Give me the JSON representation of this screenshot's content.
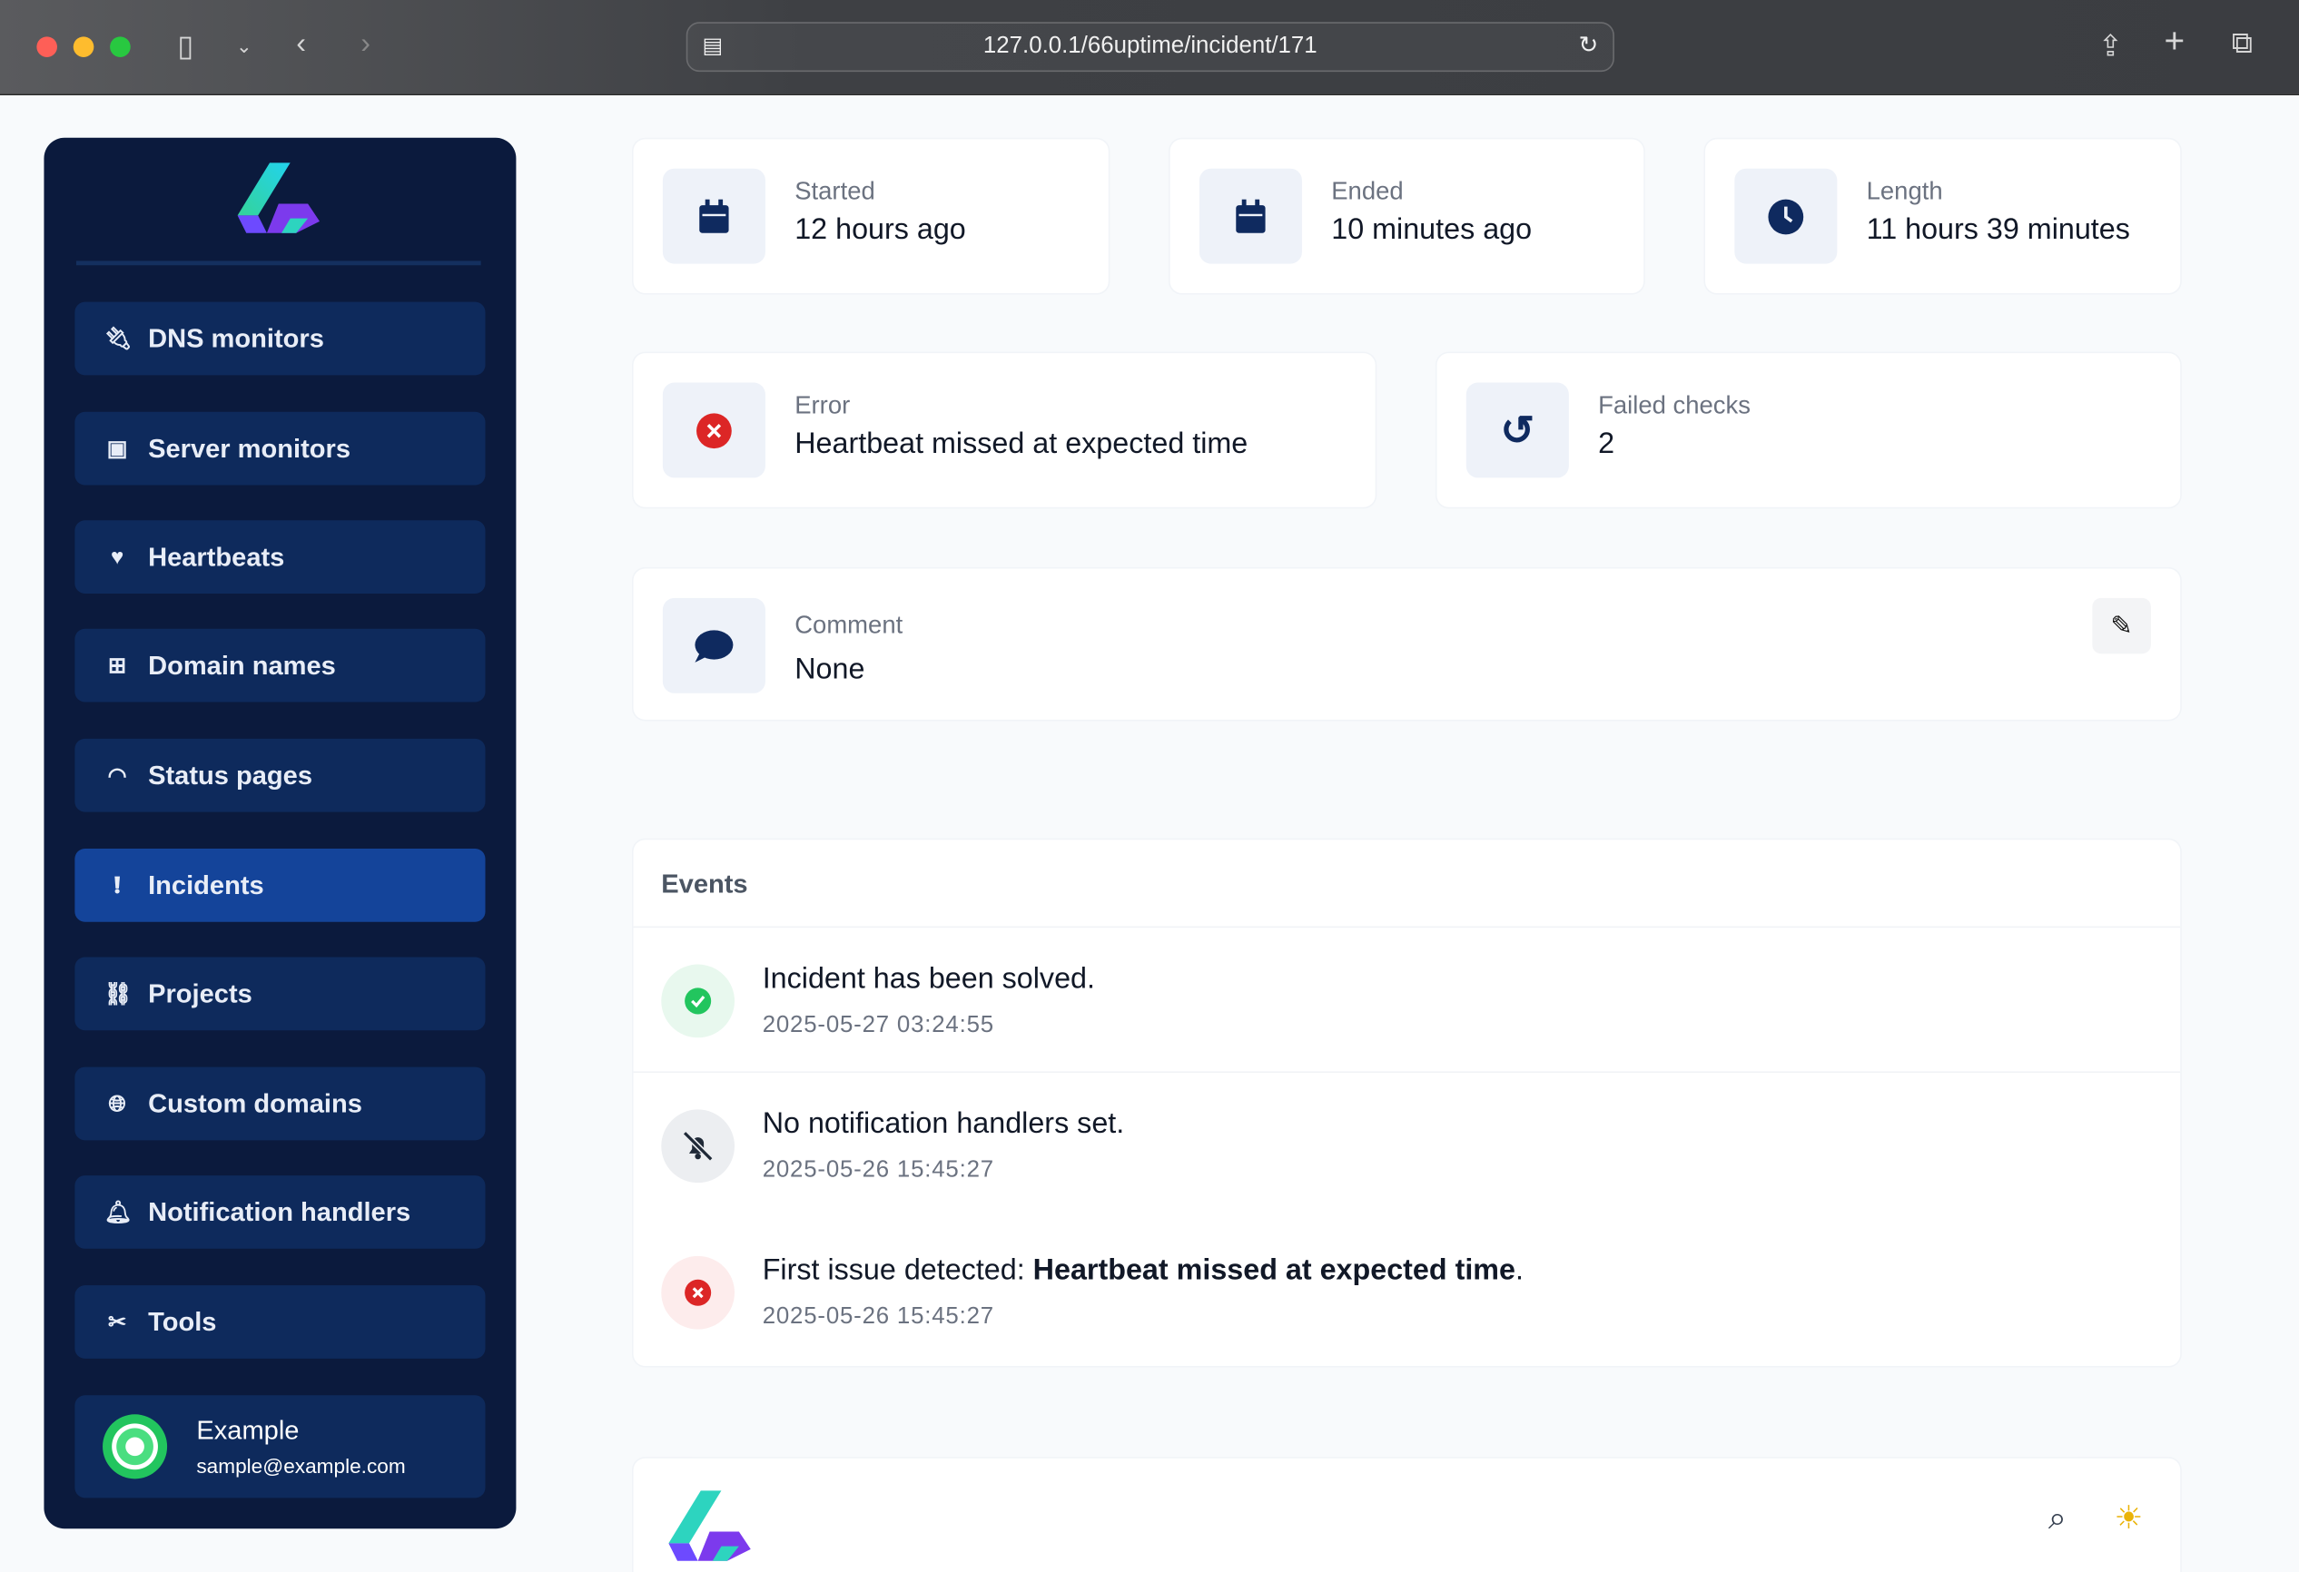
{
  "browser": {
    "url": "127.0.0.1/66uptime/incident/171"
  },
  "sidebar": {
    "items": [
      {
        "label": "DNS monitors",
        "icon": "plug-icon"
      },
      {
        "label": "Server monitors",
        "icon": "chip-icon"
      },
      {
        "label": "Heartbeats",
        "icon": "heart-pulse-icon"
      },
      {
        "label": "Domain names",
        "icon": "sitemap-icon"
      },
      {
        "label": "Status pages",
        "icon": "wifi-icon"
      },
      {
        "label": "Incidents",
        "icon": "exclamation-circle-icon",
        "active": true
      },
      {
        "label": "Projects",
        "icon": "project-diagram-icon"
      },
      {
        "label": "Custom domains",
        "icon": "globe-icon"
      },
      {
        "label": "Notification handlers",
        "icon": "bell-icon"
      },
      {
        "label": "Tools",
        "icon": "tools-icon"
      }
    ],
    "user": {
      "name": "Example",
      "email": "sample@example.com"
    }
  },
  "stats": {
    "started": {
      "label": "Started",
      "value": "12 hours ago"
    },
    "ended": {
      "label": "Ended",
      "value": "10 minutes ago"
    },
    "length": {
      "label": "Length",
      "value": "11 hours 39 minutes"
    },
    "error": {
      "label": "Error",
      "value": "Heartbeat missed at expected time"
    },
    "failed": {
      "label": "Failed checks",
      "value": "2"
    },
    "comment": {
      "label": "Comment",
      "value": "None"
    }
  },
  "events": {
    "title": "Events",
    "items": [
      {
        "text": "Incident has been solved.",
        "date": "2025-05-27 03:24:55",
        "status": "success"
      },
      {
        "text": "No notification handlers set.",
        "date": "2025-05-26 15:45:27",
        "status": "muted"
      },
      {
        "text": "First issue detected: ",
        "bold": "Heartbeat missed at expected time",
        "suffix": ".",
        "date": "2025-05-26 15:45:27",
        "status": "error"
      }
    ]
  },
  "colors": {
    "sidebar": "#0b1a3d",
    "nav": "#0e2a5c",
    "active": "#14449a",
    "success": "#22c55e",
    "error": "#dc2626"
  }
}
